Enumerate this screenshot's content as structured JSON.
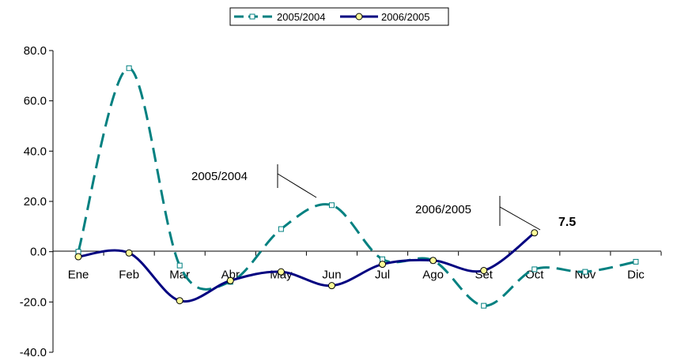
{
  "chart_data": {
    "type": "line",
    "categories": [
      "Ene",
      "Feb",
      "Mar",
      "Abr",
      "May",
      "Jun",
      "Jul",
      "Ago",
      "Set",
      "Oct",
      "Nov",
      "Dic"
    ],
    "series": [
      {
        "name": "2005/2004",
        "values": [
          0.0,
          73.0,
          -5.5,
          -12.0,
          9.0,
          18.5,
          -3.0,
          -3.5,
          -21.5,
          -7.0,
          -8.0,
          -4.0
        ],
        "color": "#008080",
        "style": "dashed",
        "marker": "square-hollow"
      },
      {
        "name": "2006/2005",
        "values": [
          -2.0,
          -0.5,
          -19.5,
          -11.5,
          -8.0,
          -13.5,
          -5.0,
          -3.5,
          -7.5,
          7.5,
          null,
          null
        ],
        "color": "#000080",
        "style": "solid",
        "marker": "circle-yellow"
      }
    ],
    "ylim": [
      -40,
      80
    ],
    "yticks": [
      "80.0",
      "60.0",
      "40.0",
      "20.0",
      "0.0",
      "-20.0",
      "-40.0"
    ],
    "ytick_values": [
      80,
      60,
      40,
      20,
      0,
      -20,
      -40
    ],
    "legend_position": "top-center",
    "grid": false,
    "annotations": [
      {
        "text": "2005/2004",
        "series": "2005/2004"
      },
      {
        "text": "2006/2005",
        "series": "2006/2005"
      }
    ],
    "data_labels": [
      {
        "series": "2006/2005",
        "category": "Oct",
        "text": "7.5"
      }
    ]
  }
}
